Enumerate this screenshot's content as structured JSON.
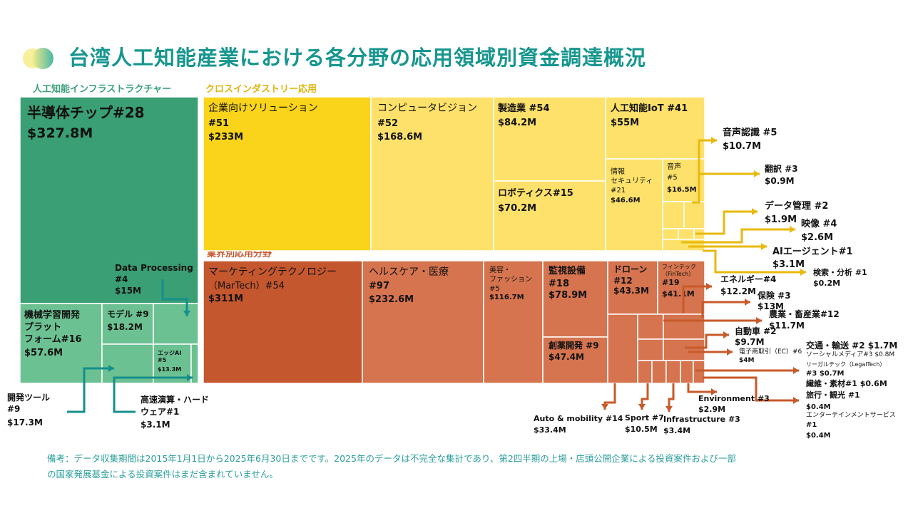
{
  "title": "台湾人工知能産業における各分野の応用領域別資金調達概況",
  "note_line1": "備考：データ収集期間は2015年1月1日から2025年6月30日までです。2025年のデータは不完全な集計であり、第2四半期の上場・店頭公開企業による投資案件および一部",
  "note_line2": "の国家発展基金による投資案件はまだ含まれていません。",
  "colors": {
    "infra": "#3a9f74",
    "infra_light": "#6cc192",
    "cross_dark": "#f9d41a",
    "cross": "#fde16a",
    "industry_dark": "#c5572e",
    "industry": "#d5744f",
    "teal_arrow": "#148f8b",
    "yellow_arrow": "#e8b90e",
    "red_arrow": "#c85a2a"
  },
  "chart_data": {
    "type": "treemap",
    "title": "台湾人工知能産業における各分野の応用領域別資金調達概況",
    "groups": [
      {
        "name": "人工知能インフラストラクチャー",
        "items": [
          {
            "label": "半導体チップ#28",
            "name": "半導体チップ",
            "deals": 28,
            "amount": "$327.8M",
            "value": 327.8
          },
          {
            "label": "機械学習開発プラットフォーム#16",
            "name": "機械学習開発プラットフォーム",
            "deals": 16,
            "amount": "$57.6M",
            "value": 57.6
          },
          {
            "label": "モデル #9",
            "name": "モデル",
            "deals": 9,
            "amount": "$18.2M",
            "value": 18.2
          },
          {
            "label": "開発ツール #9",
            "name": "開発ツール",
            "deals": 9,
            "amount": "$17.3M",
            "value": 17.3
          },
          {
            "label": "Data Processing #4",
            "name": "Data Processing",
            "deals": 4,
            "amount": "$15M",
            "value": 15
          },
          {
            "label": "エッジAI #5",
            "name": "エッジAI",
            "deals": 5,
            "amount": "$13.3M",
            "value": 13.3
          },
          {
            "label": "高速演算・ハードウェア#1",
            "name": "高速演算・ハードウェア",
            "deals": 1,
            "amount": "$3.1M",
            "value": 3.1
          }
        ]
      },
      {
        "name": "クロスインダストリー応用",
        "items": [
          {
            "label": "企業向けソリューション #51",
            "name": "企業向けソリューション",
            "deals": 51,
            "amount": "$233M",
            "value": 233
          },
          {
            "label": "コンピュータビジョン #52",
            "name": "コンピュータビジョン",
            "deals": 52,
            "amount": "$168.6M",
            "value": 168.6
          },
          {
            "label": "製造業 #54",
            "name": "製造業",
            "deals": 54,
            "amount": "$84.2M",
            "value": 84.2
          },
          {
            "label": "ロボティクス#15",
            "name": "ロボティクス",
            "deals": 15,
            "amount": "$70.2M",
            "value": 70.2
          },
          {
            "label": "人工知能IoT #41",
            "name": "人工知能IoT",
            "deals": 41,
            "amount": "$55M",
            "value": 55
          },
          {
            "label": "情報セキュリティ #21",
            "name": "情報セキュリティ",
            "deals": 21,
            "amount": "$46.6M",
            "value": 46.6
          },
          {
            "label": "音声 #5",
            "name": "音声",
            "deals": 5,
            "amount": "$16.5M",
            "value": 16.5
          },
          {
            "label": "音声認識 #5",
            "name": "音声認識",
            "deals": 5,
            "amount": "$10.7M",
            "value": 10.7
          },
          {
            "label": "AIエージェント#1",
            "name": "AIエージェント",
            "deals": 1,
            "amount": "$3.1M",
            "value": 3.1
          },
          {
            "label": "映像 #4",
            "name": "映像",
            "deals": 4,
            "amount": "$2.6M",
            "value": 2.6
          },
          {
            "label": "データ管理 #2",
            "name": "データ管理",
            "deals": 2,
            "amount": "$1.9M",
            "value": 1.9
          },
          {
            "label": "翻訳 #3",
            "name": "翻訳",
            "deals": 3,
            "amount": "$0.9M",
            "value": 0.9
          },
          {
            "label": "検索・分析 #1",
            "name": "検索・分析",
            "deals": 1,
            "amount": "$0.2M",
            "value": 0.2
          }
        ]
      },
      {
        "name": "業界別応用分野",
        "items": [
          {
            "label": "マーケティングテクノロジー（MarTech）#54",
            "name": "マーケティングテクノロジー（MarTech）",
            "deals": 54,
            "amount": "$311M",
            "value": 311
          },
          {
            "label": "ヘルスケア・医療 #97",
            "name": "ヘルスケア・医療",
            "deals": 97,
            "amount": "$232.6M",
            "value": 232.6
          },
          {
            "label": "美容・ファッション #5",
            "name": "美容・ファッション",
            "deals": 5,
            "amount": "$116.7M",
            "value": 116.7
          },
          {
            "label": "監視設備 #18",
            "name": "監視設備",
            "deals": 18,
            "amount": "$78.9M",
            "value": 78.9
          },
          {
            "label": "創薬開発 #9",
            "name": "創薬開発",
            "deals": 9,
            "amount": "$47.4M",
            "value": 47.4
          },
          {
            "label": "ドローン #12",
            "name": "ドローン",
            "deals": 12,
            "amount": "$43.3M",
            "value": 43.3
          },
          {
            "label": "フィンテック（FinTech）#19",
            "name": "フィンテック（FinTech）",
            "deals": 19,
            "amount": "$41.1M",
            "value": 41.1
          },
          {
            "label": "Auto & mobility #14",
            "name": "Auto & mobility",
            "deals": 14,
            "amount": "$33.4M",
            "value": 33.4
          },
          {
            "label": "保険 #3",
            "name": "保険",
            "deals": 3,
            "amount": "$13M",
            "value": 13
          },
          {
            "label": "エネルギー#4",
            "name": "エネルギー",
            "deals": 4,
            "amount": "$12.2M",
            "value": 12.2
          },
          {
            "label": "農業・畜産業#12",
            "name": "農業・畜産業",
            "deals": 12,
            "amount": "$11.7M",
            "value": 11.7
          },
          {
            "label": "Sport #7",
            "name": "Sport",
            "deals": 7,
            "amount": "$10.5M",
            "value": 10.5
          },
          {
            "label": "自動車 #2",
            "name": "自動車",
            "deals": 2,
            "amount": "$9.7M",
            "value": 9.7
          },
          {
            "label": "電子商取引（EC）#6",
            "name": "電子商取引（EC）",
            "deals": 6,
            "amount": "$4M",
            "value": 4
          },
          {
            "label": "Infrastructure #3",
            "name": "Infrastructure",
            "deals": 3,
            "amount": "$3.4M",
            "value": 3.4
          },
          {
            "label": "Environment #3",
            "name": "Environment",
            "deals": 3,
            "amount": "$2.9M",
            "value": 2.9
          },
          {
            "label": "交通・輸送 #2",
            "name": "交通・輸送",
            "deals": 2,
            "amount": "$1.7M",
            "value": 1.7
          },
          {
            "label": "ソーシャルメディア#3",
            "name": "ソーシャルメディア",
            "deals": 3,
            "amount": "$0.8M",
            "value": 0.8
          },
          {
            "label": "リーガルテック（LegalTech）#3",
            "name": "リーガルテック（LegalTech）",
            "deals": 3,
            "amount": "$0.7M",
            "value": 0.7
          },
          {
            "label": "繊維・素材#1",
            "name": "繊維・素材",
            "deals": 1,
            "amount": "$0.6M",
            "value": 0.6
          },
          {
            "label": "旅行・観光 #1",
            "name": "旅行・観光",
            "deals": 1,
            "amount": "$0.4M",
            "value": 0.4
          },
          {
            "label": "エンターテインメントサービス #1",
            "name": "エンターテインメントサービス",
            "deals": 1,
            "amount": "$0.4M",
            "value": 0.4
          }
        ]
      }
    ]
  }
}
